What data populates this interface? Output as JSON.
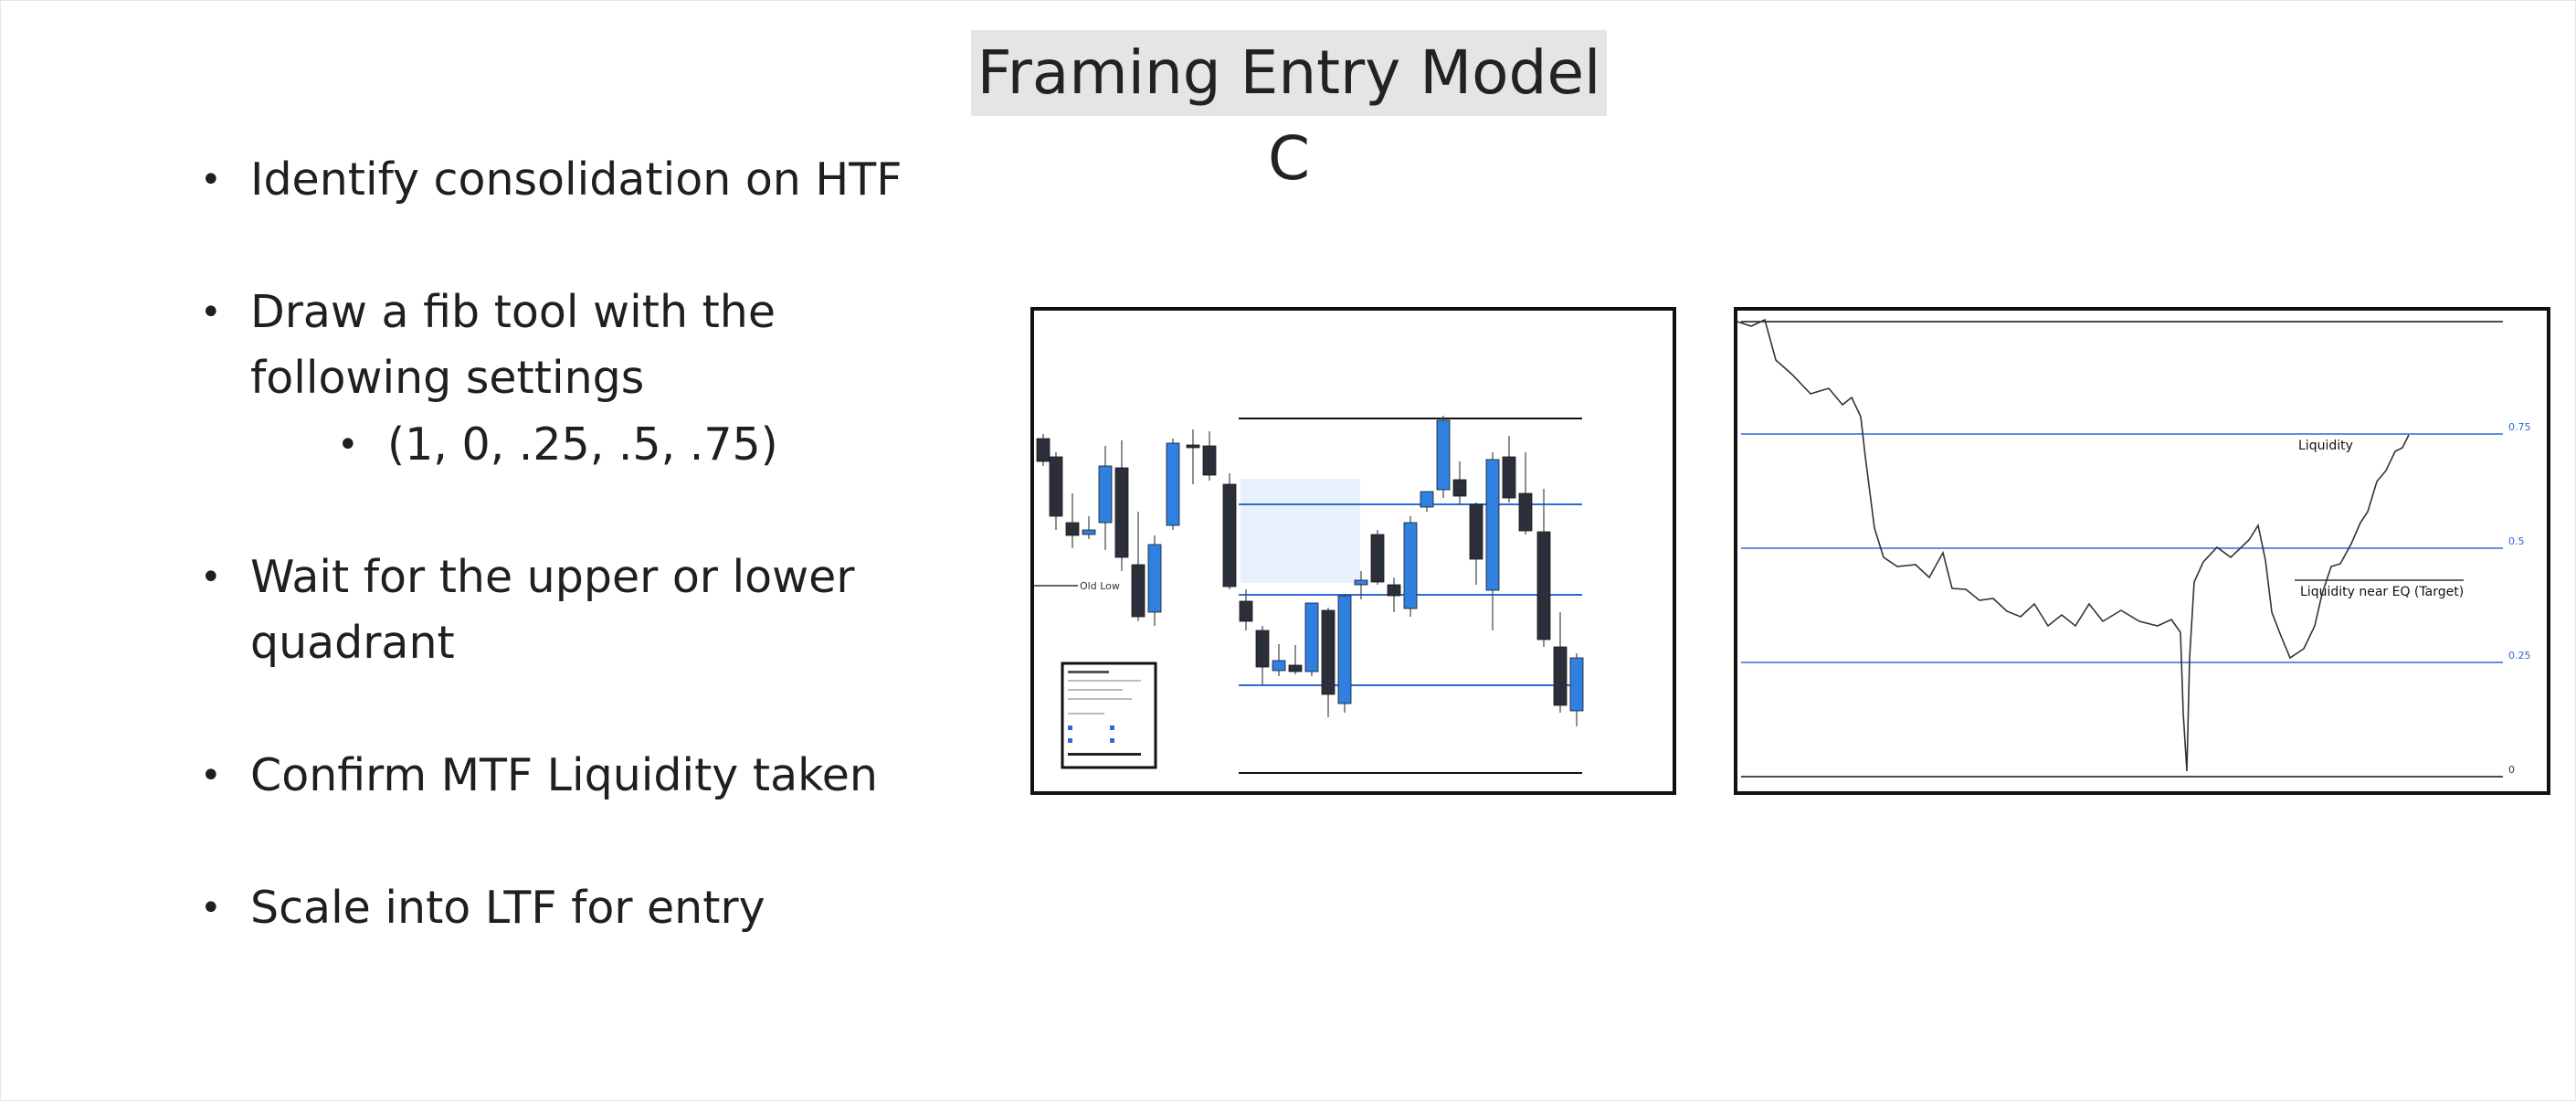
{
  "slide": {
    "title": "Framing Entry Model C",
    "bullets": [
      {
        "level": 1,
        "lines": [
          "Identify consolidation on HTF"
        ]
      },
      {
        "level": 1,
        "lines": [
          "Draw a fib tool with the",
          "following settings"
        ]
      },
      {
        "level": 2,
        "lines": [
          "(1, 0, .25, .5, .75)"
        ]
      },
      {
        "level": 1,
        "lines": [
          "Wait for the upper or lower",
          "quadrant"
        ]
      },
      {
        "level": 1,
        "lines": [
          "Confirm MTF Liquidity taken"
        ]
      },
      {
        "level": 1,
        "lines": [
          "Scale into LTF for entry"
        ]
      }
    ],
    "bullet_symbol": "•"
  },
  "left_chart": {
    "annotation": "Old Low",
    "colors": {
      "bull": "#2f80e0",
      "bear": "#2b2f3a",
      "fib": "#2f6ad8",
      "zone": "#e8f0fb"
    }
  },
  "right_chart": {
    "annotations": {
      "liquidity": "Liquidity",
      "target": "Liquidity near EQ (Target)"
    },
    "fib_labels": [
      "0.75",
      "0.5",
      "0.25",
      "0"
    ],
    "colors": {
      "fib": "#2f6ad8",
      "price": "#333333"
    }
  }
}
